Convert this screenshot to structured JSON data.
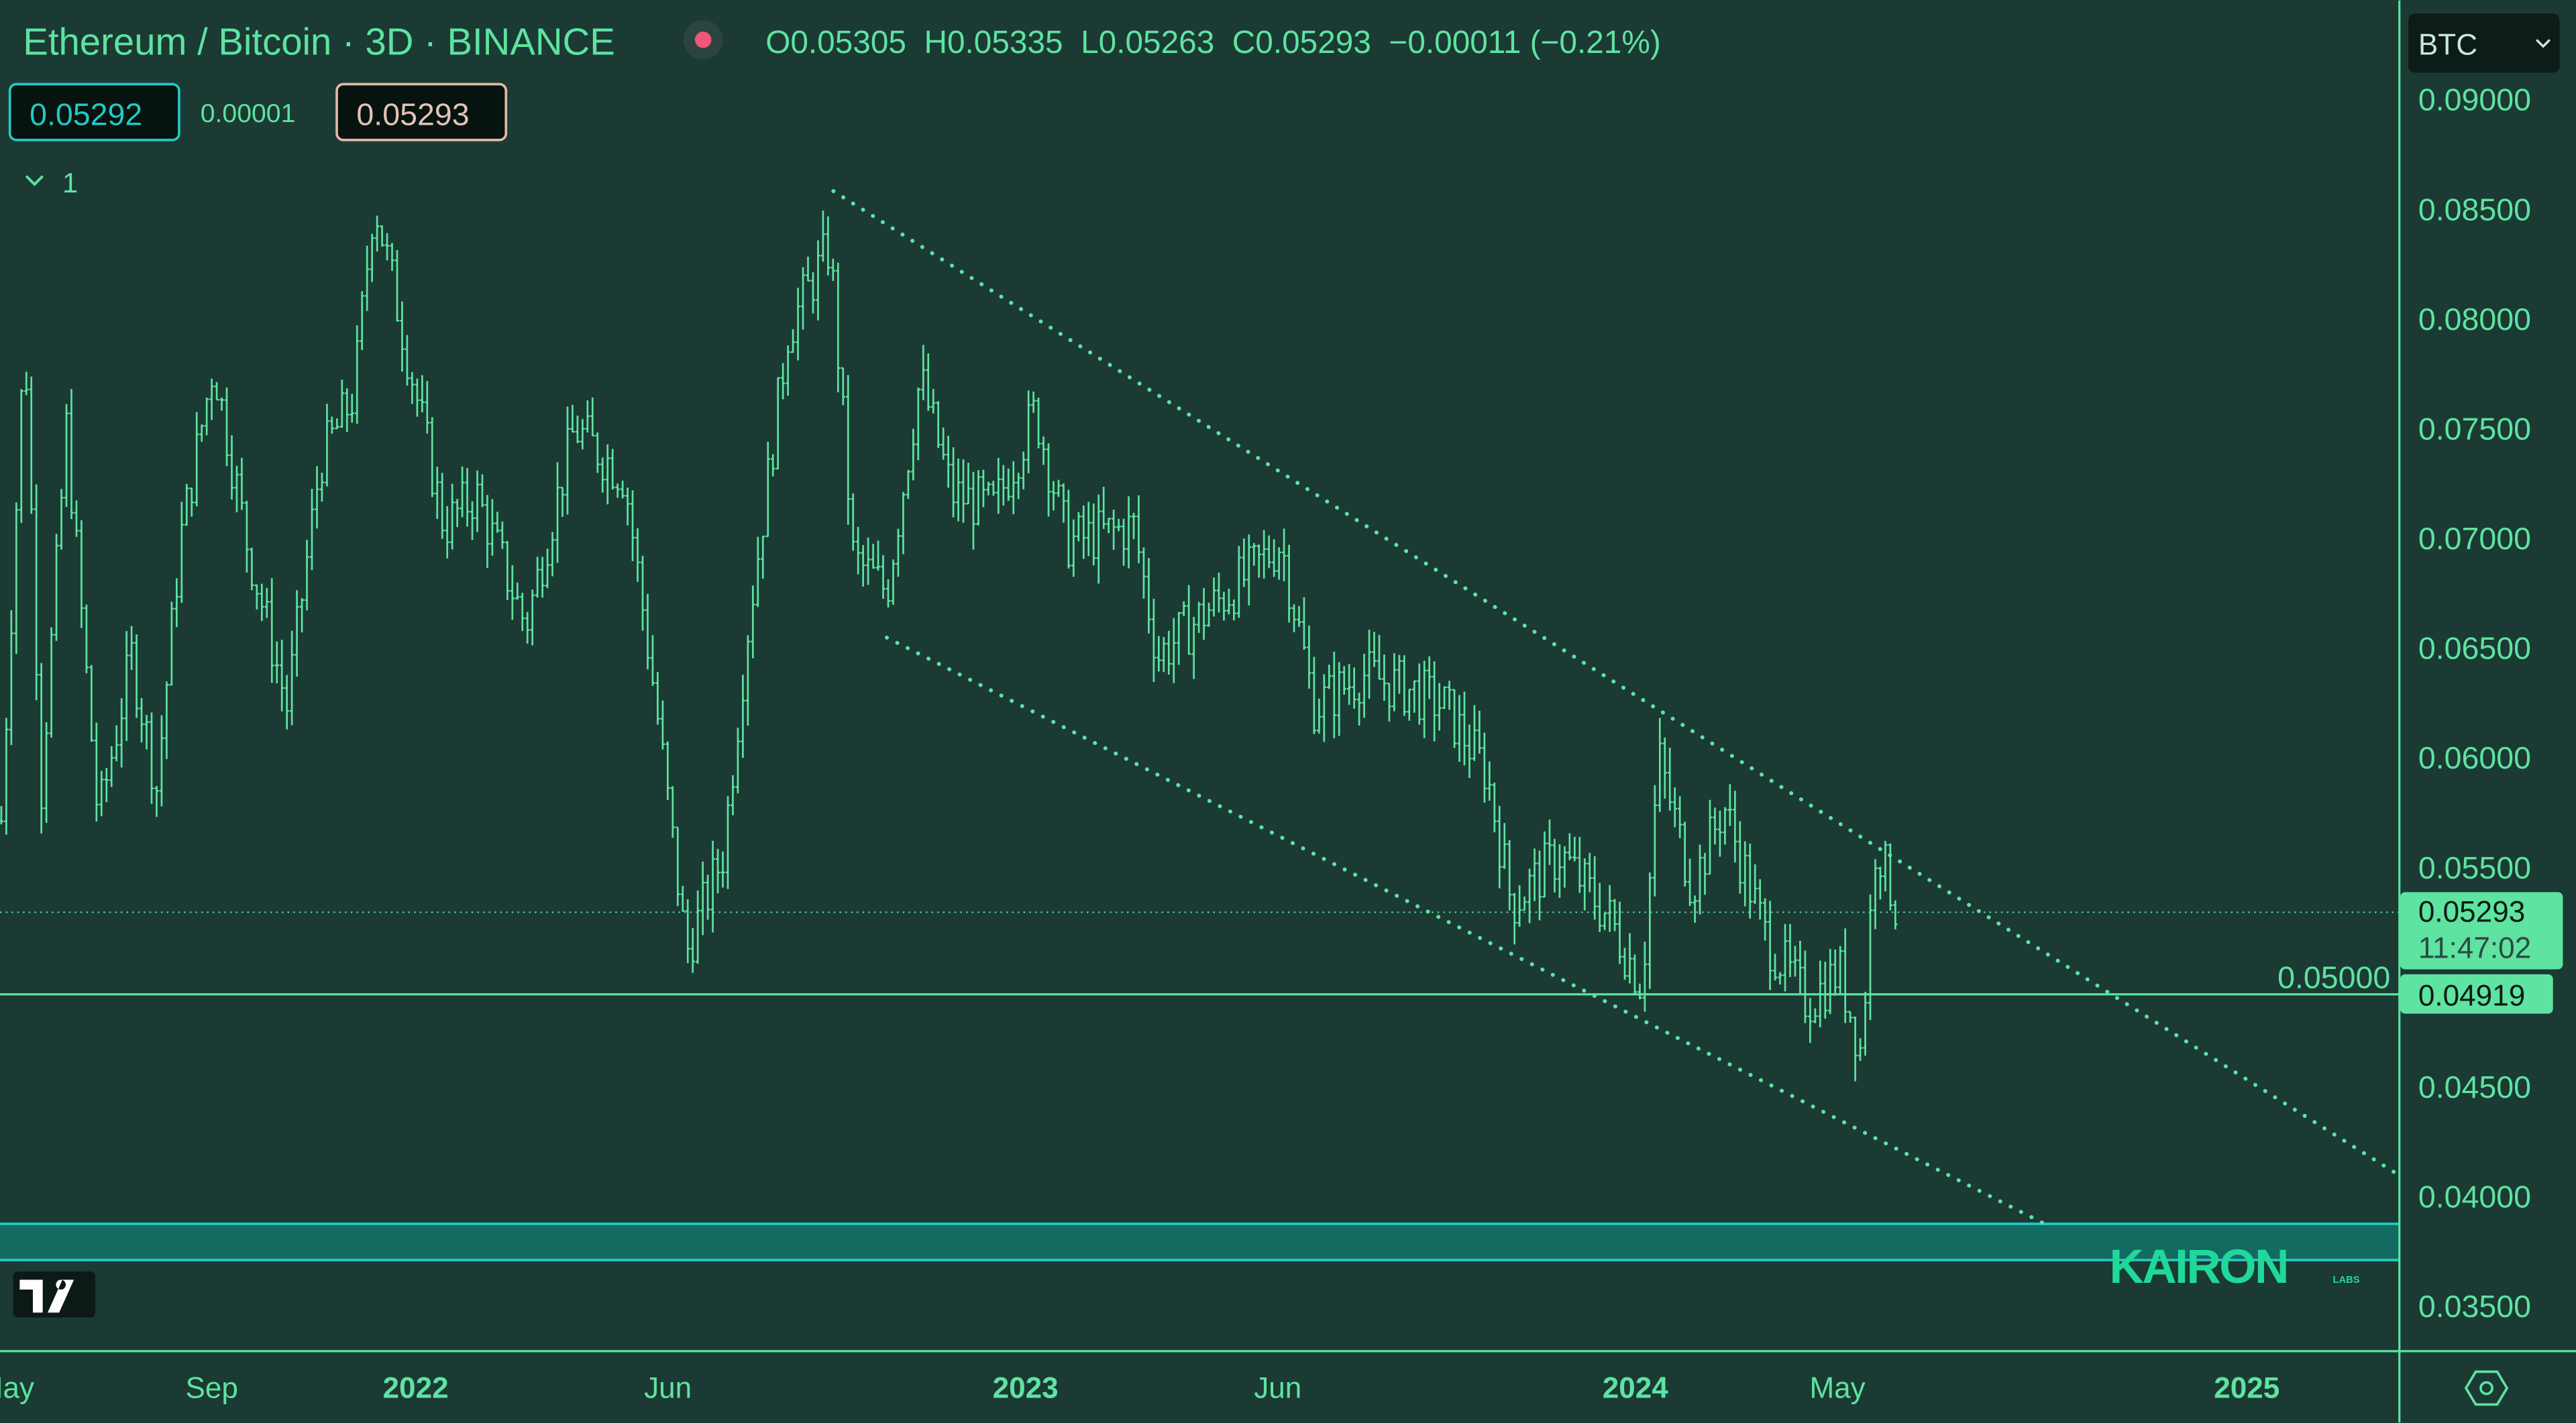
{
  "header": {
    "title": "Ethereum / Bitcoin · 3D · BINANCE",
    "ohlc": "O0.05305  H0.05335  L0.05263  C0.05293  −0.00011 (−0.21%)",
    "bid": "0.05292",
    "spread": "0.00001",
    "ask": "0.05293",
    "indicators_toggle": "1",
    "currency_button": "BTC"
  },
  "colors": {
    "background": "#1b3a34",
    "candles": "#5ee3a0",
    "band": "#136a61",
    "band_border": "#22c9c4",
    "live_dot": "#f0567a"
  },
  "price_labels": {
    "last_price": "0.05293",
    "countdown": "11:47:02",
    "support_level": "0.04919"
  },
  "watermark": "KAIRON",
  "watermark_sub": "LABS",
  "chart_data": {
    "type": "candlestick",
    "title": "Ethereum / Bitcoin · 3D · BINANCE",
    "interval": "3D",
    "y_ticks": [
      "0.09000",
      "0.08500",
      "0.08000",
      "0.07500",
      "0.07000",
      "0.06500",
      "0.06000",
      "0.05500",
      "0.05000",
      "0.04500",
      "0.04000",
      "0.03500"
    ],
    "y_tick_values": [
      0.09,
      0.085,
      0.08,
      0.075,
      0.07,
      0.065,
      0.06,
      0.055,
      0.05,
      0.045,
      0.04,
      0.035
    ],
    "ylim": [
      0.0325,
      0.0925
    ],
    "x_ticks": [
      {
        "label": "May",
        "date": "2021-05-01",
        "bold": false
      },
      {
        "label": "Sep",
        "date": "2021-09-01",
        "bold": false
      },
      {
        "label": "2022",
        "date": "2022-01-01",
        "bold": true
      },
      {
        "label": "Jun",
        "date": "2022-06-01",
        "bold": false
      },
      {
        "label": "2023",
        "date": "2023-01-01",
        "bold": true
      },
      {
        "label": "Jun",
        "date": "2023-06-01",
        "bold": false
      },
      {
        "label": "2024",
        "date": "2024-01-01",
        "bold": true
      },
      {
        "label": "May",
        "date": "2024-05-01",
        "bold": false
      },
      {
        "label": "2025",
        "date": "2025-01-01",
        "bold": true
      }
    ],
    "price_path_approx": [
      [
        "2021-04-28",
        0.0571
      ],
      [
        "2021-05-12",
        0.0795
      ],
      [
        "2021-05-22",
        0.0586
      ],
      [
        "2021-06-06",
        0.075
      ],
      [
        "2021-06-25",
        0.0571
      ],
      [
        "2021-07-15",
        0.0646
      ],
      [
        "2021-07-30",
        0.0586
      ],
      [
        "2021-08-13",
        0.0698
      ],
      [
        "2021-09-02",
        0.078
      ],
      [
        "2021-09-22",
        0.0698
      ],
      [
        "2021-10-16",
        0.0623
      ],
      [
        "2021-11-05",
        0.0735
      ],
      [
        "2021-11-25",
        0.0765
      ],
      [
        "2021-12-07",
        0.0855
      ],
      [
        "2021-12-24",
        0.0795
      ],
      [
        "2022-01-18",
        0.0705
      ],
      [
        "2022-02-06",
        0.072
      ],
      [
        "2022-03-08",
        0.066
      ],
      [
        "2022-04-06",
        0.075
      ],
      [
        "2022-05-06",
        0.0728
      ],
      [
        "2022-05-25",
        0.0623
      ],
      [
        "2022-06-12",
        0.0511
      ],
      [
        "2022-07-04",
        0.0556
      ],
      [
        "2022-07-19",
        0.066
      ],
      [
        "2022-08-12",
        0.0795
      ],
      [
        "2022-09-06",
        0.0833
      ],
      [
        "2022-09-20",
        0.069
      ],
      [
        "2022-10-10",
        0.0676
      ],
      [
        "2022-10-30",
        0.0773
      ],
      [
        "2022-11-18",
        0.072
      ],
      [
        "2022-12-13",
        0.0713
      ],
      [
        "2023-01-07",
        0.0758
      ],
      [
        "2023-01-26",
        0.0698
      ],
      [
        "2023-03-07",
        0.0705
      ],
      [
        "2023-03-21",
        0.0646
      ],
      [
        "2023-04-10",
        0.066
      ],
      [
        "2023-05-14",
        0.0683
      ],
      [
        "2023-06-03",
        0.0698
      ],
      [
        "2023-06-23",
        0.0623
      ],
      [
        "2023-07-22",
        0.0638
      ],
      [
        "2023-08-21",
        0.063
      ],
      [
        "2023-09-09",
        0.0623
      ],
      [
        "2023-10-04",
        0.0593
      ],
      [
        "2023-10-19",
        0.0533
      ],
      [
        "2023-11-17",
        0.0556
      ],
      [
        "2023-12-17",
        0.0526
      ],
      [
        "2024-01-05",
        0.0496
      ],
      [
        "2024-01-15",
        0.06
      ],
      [
        "2024-02-04",
        0.0541
      ],
      [
        "2024-02-23",
        0.0578
      ],
      [
        "2024-03-19",
        0.0518
      ],
      [
        "2024-04-13",
        0.0488
      ],
      [
        "2024-05-02",
        0.0503
      ],
      [
        "2024-05-15",
        0.0466
      ],
      [
        "2024-05-24",
        0.0563
      ],
      [
        "2024-06-06",
        0.0529
      ]
    ],
    "last_close": 0.05293,
    "horizontal_line": 0.04919,
    "trendlines": [
      {
        "style": "dotted",
        "from": [
          "2022-09-08",
          0.0858
        ],
        "to": [
          "2025-04-01",
          0.041
        ]
      },
      {
        "style": "dotted",
        "from": [
          "2022-10-10",
          0.06545
        ],
        "to": [
          "2024-09-02",
          0.03873
        ]
      }
    ],
    "zone": {
      "from": 0.03708,
      "to": 0.03873
    }
  }
}
